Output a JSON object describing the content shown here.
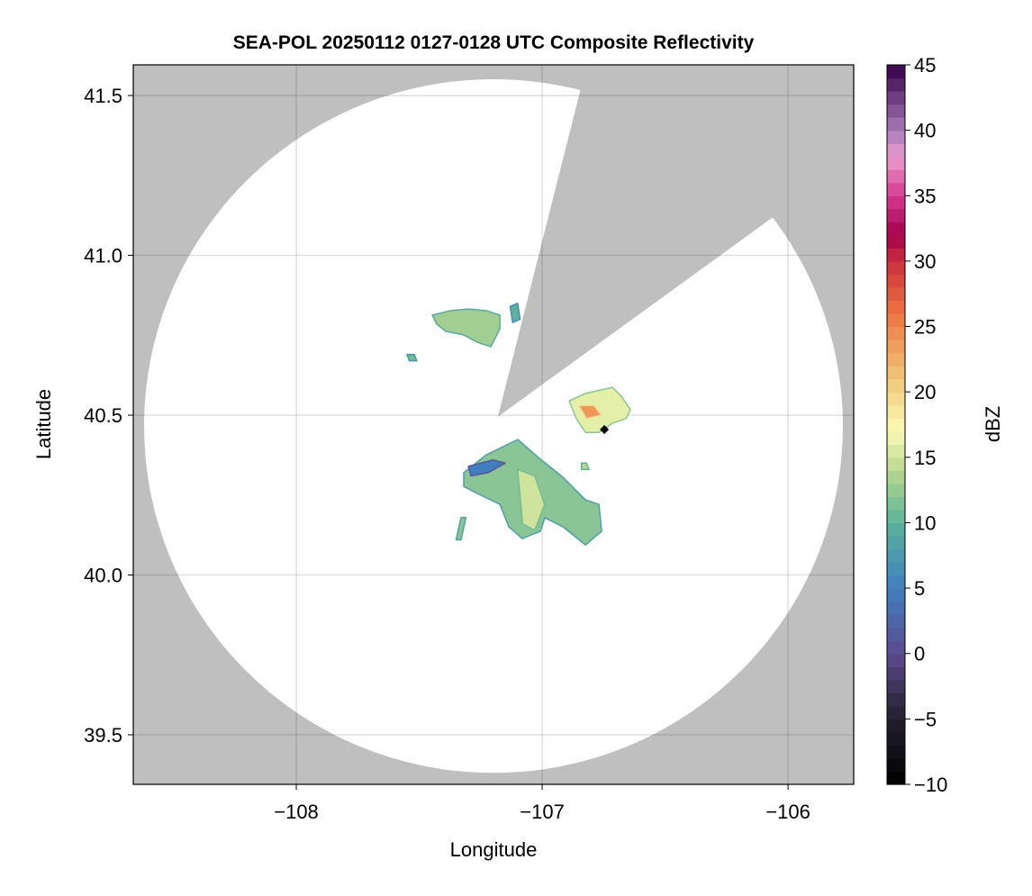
{
  "chart_data": {
    "type": "heatmap",
    "title": "SEA-POL 20250112 0127-0128 UTC Composite Reflectivity",
    "xlabel": "Longitude",
    "ylabel": "Latitude",
    "xlim": [
      -108.663,
      -105.733
    ],
    "ylim": [
      39.345,
      41.596
    ],
    "xticks": [
      -108,
      -107,
      -106
    ],
    "xtick_labels": [
      "−108",
      "−107",
      "−106"
    ],
    "yticks": [
      39.5,
      40.0,
      40.5,
      41.0,
      41.5
    ],
    "ytick_labels": [
      "39.5",
      "40.0",
      "40.5",
      "41.0",
      "41.5"
    ],
    "grid": true,
    "background_color": "#bfbfbf",
    "coverage": {
      "center": [
        -107.198,
        40.466
      ],
      "radius_lon": 1.421,
      "radius_lat": 1.085,
      "fill": "#ffffff"
    },
    "blocked_sector": {
      "apex": [
        -107.18,
        40.495
      ],
      "edge1": [
        -106.842,
        41.525
      ],
      "edge2": [
        -106.055,
        41.123
      ]
    },
    "radar_marker": {
      "lon": -106.747,
      "lat": 40.455,
      "color": "#000000"
    },
    "echoes": [
      {
        "dbz": 12,
        "polygon": [
          [
            -107.319,
            40.32
          ],
          [
            -107.227,
            40.376
          ],
          [
            -107.099,
            40.424
          ],
          [
            -107.007,
            40.362
          ],
          [
            -106.916,
            40.306
          ],
          [
            -106.824,
            40.235
          ],
          [
            -106.769,
            40.221
          ],
          [
            -106.758,
            40.137
          ],
          [
            -106.824,
            40.094
          ],
          [
            -106.916,
            40.151
          ],
          [
            -106.989,
            40.179
          ],
          [
            -107.007,
            40.137
          ],
          [
            -107.081,
            40.114
          ],
          [
            -107.136,
            40.151
          ],
          [
            -107.172,
            40.221
          ],
          [
            -107.264,
            40.255
          ],
          [
            -107.319,
            40.277
          ]
        ]
      },
      {
        "dbz": 15,
        "polygon": [
          [
            -107.1,
            40.33
          ],
          [
            -107.03,
            40.31
          ],
          [
            -106.99,
            40.22
          ],
          [
            -107.03,
            40.14
          ],
          [
            -107.08,
            40.16
          ],
          [
            -107.09,
            40.25
          ]
        ]
      },
      {
        "dbz": 5,
        "polygon": [
          [
            -107.3,
            40.34
          ],
          [
            -107.2,
            40.36
          ],
          [
            -107.15,
            40.35
          ],
          [
            -107.22,
            40.32
          ],
          [
            -107.29,
            40.31
          ]
        ]
      },
      {
        "dbz": 16,
        "polygon": [
          [
            -106.89,
            40.545
          ],
          [
            -106.824,
            40.568
          ],
          [
            -106.714,
            40.587
          ],
          [
            -106.678,
            40.559
          ],
          [
            -106.641,
            40.517
          ],
          [
            -106.659,
            40.489
          ],
          [
            -106.714,
            40.475
          ],
          [
            -106.769,
            40.446
          ],
          [
            -106.824,
            40.446
          ],
          [
            -106.861,
            40.489
          ]
        ]
      },
      {
        "dbz": 24,
        "polygon": [
          [
            -106.85,
            40.53
          ],
          [
            -106.79,
            40.53
          ],
          [
            -106.76,
            40.5
          ],
          [
            -106.82,
            40.49
          ]
        ]
      },
      {
        "dbz": 13,
        "polygon": [
          [
            -107.447,
            40.813
          ],
          [
            -107.374,
            40.827
          ],
          [
            -107.3,
            40.832
          ],
          [
            -107.227,
            40.827
          ],
          [
            -107.172,
            40.813
          ],
          [
            -107.172,
            40.77
          ],
          [
            -107.209,
            40.714
          ],
          [
            -107.264,
            40.728
          ],
          [
            -107.319,
            40.751
          ],
          [
            -107.392,
            40.762
          ],
          [
            -107.429,
            40.785
          ]
        ]
      },
      {
        "dbz": 10,
        "polygon": [
          [
            -107.13,
            40.84
          ],
          [
            -107.1,
            40.85
          ],
          [
            -107.09,
            40.8
          ],
          [
            -107.12,
            40.79
          ]
        ]
      },
      {
        "dbz": 11,
        "polygon": [
          [
            -107.55,
            40.69
          ],
          [
            -107.52,
            40.69
          ],
          [
            -107.51,
            40.67
          ],
          [
            -107.54,
            40.67
          ]
        ]
      },
      {
        "dbz": 12,
        "polygon": [
          [
            -107.33,
            40.18
          ],
          [
            -107.31,
            40.18
          ],
          [
            -107.33,
            40.11
          ],
          [
            -107.35,
            40.11
          ]
        ]
      },
      {
        "dbz": 14,
        "polygon": [
          [
            -106.84,
            40.35
          ],
          [
            -106.82,
            40.35
          ],
          [
            -106.81,
            40.33
          ],
          [
            -106.84,
            40.33
          ]
        ]
      }
    ],
    "colorbar": {
      "label": "dBZ",
      "range": [
        -10,
        45
      ],
      "ticks": [
        -10,
        -5,
        0,
        5,
        10,
        15,
        20,
        25,
        30,
        35,
        40,
        45
      ],
      "tick_labels": [
        "−10",
        "−5",
        "0",
        "5",
        "10",
        "15",
        "20",
        "25",
        "30",
        "35",
        "40",
        "45"
      ],
      "bins": 55,
      "stops": [
        {
          "v": -10,
          "c": "#000000"
        },
        {
          "v": -5,
          "c": "#221f2c"
        },
        {
          "v": 0,
          "c": "#5c4a8e"
        },
        {
          "v": 5,
          "c": "#3f7fbf"
        },
        {
          "v": 10,
          "c": "#5ab39a"
        },
        {
          "v": 14,
          "c": "#b8d78f"
        },
        {
          "v": 17,
          "c": "#fafbb5"
        },
        {
          "v": 21,
          "c": "#f1c77a"
        },
        {
          "v": 26,
          "c": "#ee7441"
        },
        {
          "v": 30,
          "c": "#cc2e3e"
        },
        {
          "v": 32,
          "c": "#a2004c"
        },
        {
          "v": 35,
          "c": "#d83a8f"
        },
        {
          "v": 38,
          "c": "#eb9ccf"
        },
        {
          "v": 40,
          "c": "#a77ab8"
        },
        {
          "v": 45,
          "c": "#36004a"
        }
      ]
    }
  }
}
